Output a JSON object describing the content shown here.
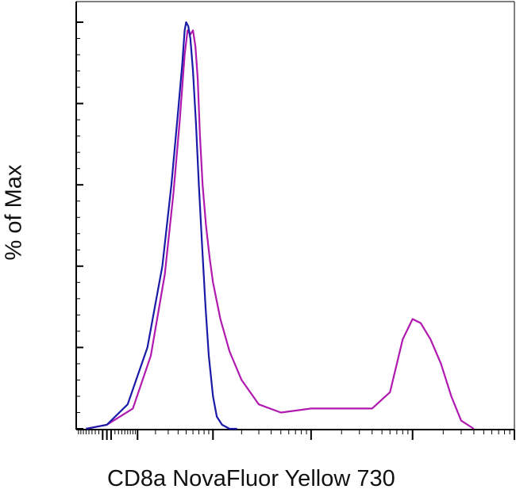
{
  "chart_data": {
    "type": "line",
    "title": "",
    "xlabel": "CD8a NovaFluor Yellow 730",
    "ylabel": "% of Max",
    "x_scale": "log",
    "xlim": [
      -100,
      1000000
    ],
    "ylim": [
      0,
      100
    ],
    "grid": false,
    "legend": "none",
    "series": [
      {
        "color": "#1a1aa8",
        "x": [
          -60,
          0,
          60,
          150,
          250,
          330,
          400,
          450,
          480,
          500,
          530,
          560,
          600,
          650,
          700,
          760,
          830,
          900,
          1000,
          1100,
          1250,
          1500,
          1800
        ],
        "y": [
          0,
          1,
          6,
          20,
          40,
          60,
          78,
          90,
          98,
          100,
          99,
          96,
          88,
          75,
          60,
          45,
          30,
          18,
          8,
          3,
          1,
          0,
          0
        ]
      },
      {
        "color": "#b01ab0",
        "x": [
          -60,
          0,
          80,
          170,
          270,
          350,
          420,
          480,
          520,
          560,
          600,
          640,
          680,
          720,
          770,
          840,
          920,
          1000,
          1200,
          1500,
          2000,
          3000,
          5000,
          10000,
          20000,
          40000,
          60000,
          80000,
          100000,
          120000,
          150000,
          190000,
          240000,
          300000,
          400000
        ],
        "y": [
          0,
          1,
          5,
          18,
          38,
          58,
          76,
          92,
          98,
          97,
          98,
          94,
          86,
          72,
          60,
          50,
          42,
          36,
          27,
          19,
          12,
          6,
          4,
          5,
          5,
          5,
          9,
          22,
          27,
          26,
          22,
          16,
          8,
          2,
          0
        ]
      }
    ]
  }
}
